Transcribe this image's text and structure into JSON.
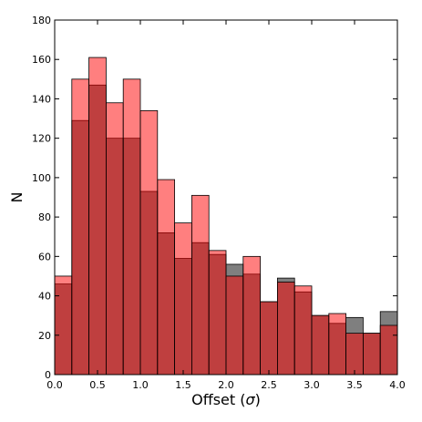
{
  "chart_data": {
    "type": "bar",
    "subtype": "overlaid-histogram",
    "title": "",
    "xlabel": "Offset (σ)",
    "xlabel_base": "Offset (",
    "xlabel_symbol": "σ",
    "xlabel_close": ")",
    "ylabel": "N",
    "xlim": [
      0.0,
      4.0
    ],
    "ylim": [
      0,
      180
    ],
    "bin_width": 0.2,
    "bin_edges": [
      0.0,
      0.2,
      0.4,
      0.6,
      0.8,
      1.0,
      1.2,
      1.4,
      1.6,
      1.8,
      2.0,
      2.2,
      2.4,
      2.6,
      2.8,
      3.0,
      3.2,
      3.4,
      3.6,
      3.8,
      4.0
    ],
    "x_ticks": [
      "0.0",
      "0.5",
      "1.0",
      "1.5",
      "2.0",
      "2.5",
      "3.0",
      "3.5",
      "4.0"
    ],
    "y_ticks": [
      "0",
      "20",
      "40",
      "60",
      "80",
      "100",
      "120",
      "140",
      "160",
      "180"
    ],
    "grid": false,
    "series": [
      {
        "color": "#7f7f7f",
        "opacity": 1.0,
        "values": [
          46,
          129,
          147,
          120,
          120,
          93,
          72,
          59,
          67,
          61,
          56,
          51,
          37,
          49,
          42,
          30,
          26,
          29,
          21,
          32
        ]
      },
      {
        "color": "#ff0000",
        "opacity": 0.5,
        "values": [
          50,
          150,
          161,
          138,
          150,
          134,
          99,
          77,
          91,
          63,
          50,
          60,
          37,
          47,
          45,
          30,
          31,
          21,
          21,
          25
        ]
      }
    ]
  }
}
